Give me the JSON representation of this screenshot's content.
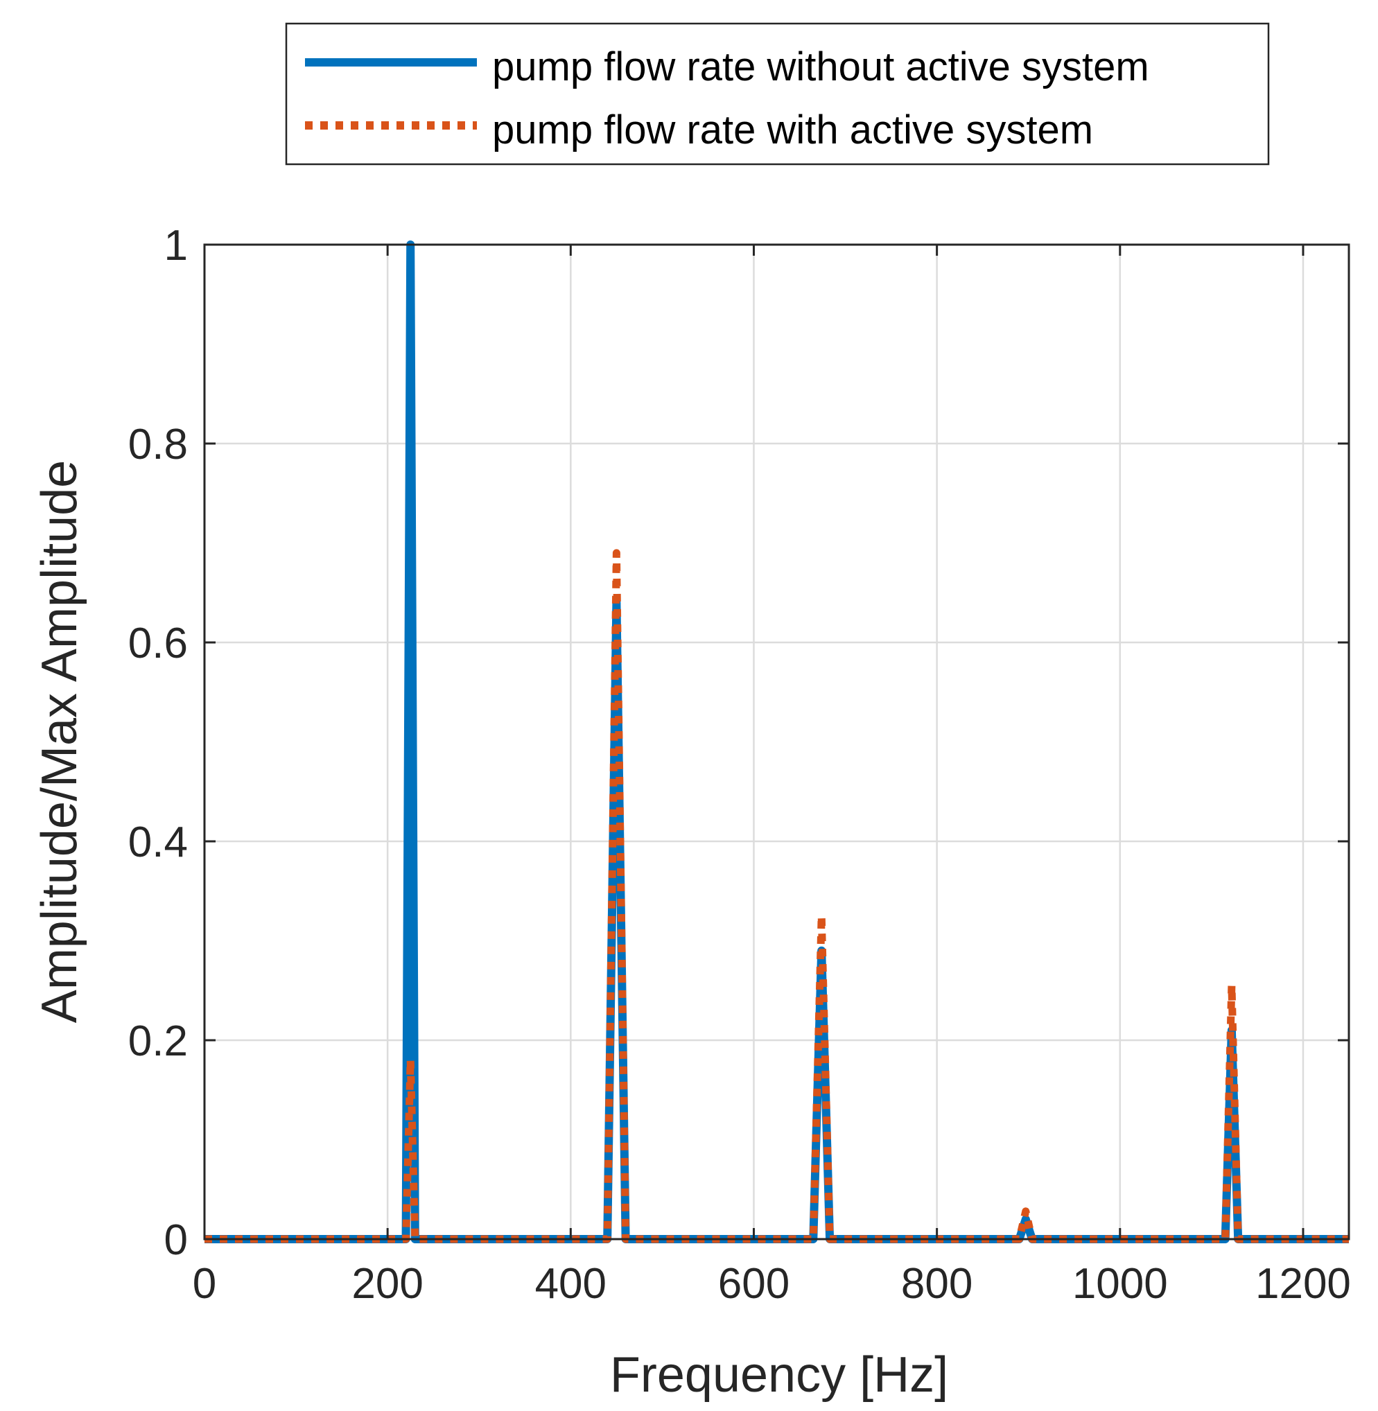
{
  "chart_data": {
    "type": "line",
    "xlabel": "Frequency [Hz]",
    "ylabel": "Amplitude/Max Amplitude",
    "xlim": [
      0,
      1250
    ],
    "ylim": [
      0,
      1
    ],
    "xticks": [
      0,
      200,
      400,
      600,
      800,
      1000,
      1200
    ],
    "xtick_labels": [
      "0",
      "200",
      "400",
      "600",
      "800",
      "1000",
      "1200"
    ],
    "yticks": [
      0,
      0.2,
      0.4,
      0.6,
      0.8,
      1
    ],
    "ytick_labels": [
      "0",
      "0.2",
      "0.4",
      "0.6",
      "0.8",
      "1"
    ],
    "grid": true,
    "legend_position": "top",
    "colors": {
      "axis": "#262626",
      "grid": "#dcdcdc"
    },
    "series": [
      {
        "name": "pump flow rate without active system",
        "color": "#0072BD",
        "style": "solid",
        "x": [
          0,
          220,
          225,
          230,
          440,
          450,
          460,
          665,
          674,
          683,
          890,
          897,
          904,
          1115,
          1122,
          1129,
          1250
        ],
        "y": [
          0,
          0,
          1.0,
          0,
          0,
          0.64,
          0,
          0,
          0.29,
          0,
          0,
          0.02,
          0,
          0,
          0.21,
          0,
          0
        ]
      },
      {
        "name": "pump flow rate with active system",
        "color": "#D95319",
        "style": "dotted",
        "x": [
          0,
          220,
          225,
          230,
          440,
          450,
          460,
          665,
          674,
          683,
          890,
          897,
          904,
          1115,
          1122,
          1129,
          1250
        ],
        "y": [
          0,
          0,
          0.18,
          0,
          0,
          0.69,
          0,
          0,
          0.325,
          0,
          0,
          0.028,
          0,
          0,
          0.255,
          0,
          0
        ]
      }
    ]
  }
}
